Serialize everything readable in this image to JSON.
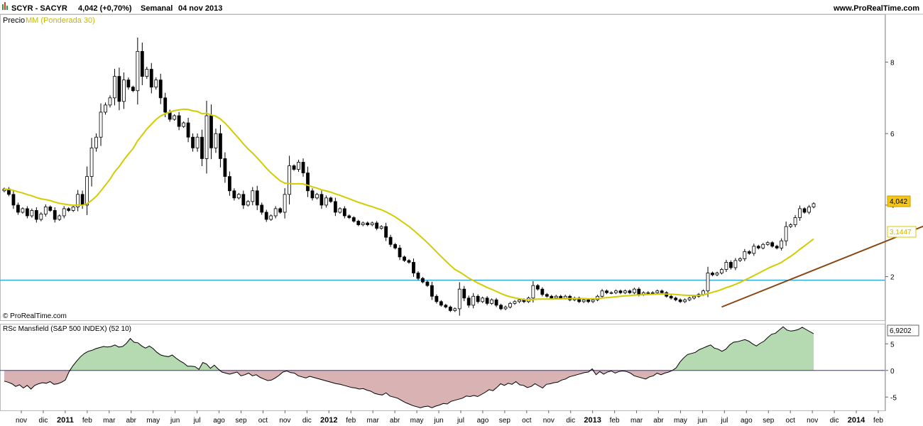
{
  "header": {
    "symbol": "SCYR - SACYR",
    "quote": "4,042 (+0,70%)",
    "period": "Semanal",
    "date": "04 nov 2013",
    "site": "www.ProRealTime.com",
    "legend_price": "Precio",
    "legend_ma": "MM (Ponderada 30)",
    "copyright": "© ProRealTime.com",
    "lower_title": "RSc Mansfield (S&P 500 INDEX) (52 10)"
  },
  "colors": {
    "up_candle": "#ffffff",
    "down_candle": "#000000",
    "ma_line": "#d4cb00",
    "support_line": "#33aadd",
    "trend_line": "#8b4513",
    "rsc_line": "#000000",
    "rsc_positive_fill": "#b5d9b0",
    "rsc_negative_fill": "#d9b3b3",
    "zero_line": "#3333aa",
    "price_tag_bg": "#f5c518"
  },
  "chart_data": [
    {
      "type": "candlestick",
      "title": "SCYR - SACYR",
      "y_ticks": [
        2,
        4,
        6,
        8
      ],
      "y_tick_labels": [
        "2",
        "4",
        "6",
        "8"
      ],
      "ylim": [
        0.8,
        9.3
      ],
      "x_labels": [
        {
          "label": "nov",
          "year": false
        },
        {
          "label": "dic",
          "year": false
        },
        {
          "label": "2011",
          "year": true
        },
        {
          "label": "feb",
          "year": false
        },
        {
          "label": "mar",
          "year": false
        },
        {
          "label": "abr",
          "year": false
        },
        {
          "label": "may",
          "year": false
        },
        {
          "label": "jun",
          "year": false
        },
        {
          "label": "jul",
          "year": false
        },
        {
          "label": "ago",
          "year": false
        },
        {
          "label": "sep",
          "year": false
        },
        {
          "label": "oct",
          "year": false
        },
        {
          "label": "nov",
          "year": false
        },
        {
          "label": "dic",
          "year": false
        },
        {
          "label": "2012",
          "year": true
        },
        {
          "label": "feb",
          "year": false
        },
        {
          "label": "mar",
          "year": false
        },
        {
          "label": "abr",
          "year": false
        },
        {
          "label": "may",
          "year": false
        },
        {
          "label": "jun",
          "year": false
        },
        {
          "label": "jul",
          "year": false
        },
        {
          "label": "ago",
          "year": false
        },
        {
          "label": "sep",
          "year": false
        },
        {
          "label": "oct",
          "year": false
        },
        {
          "label": "nov",
          "year": false
        },
        {
          "label": "dic",
          "year": false
        },
        {
          "label": "2013",
          "year": true
        },
        {
          "label": "feb",
          "year": false
        },
        {
          "label": "mar",
          "year": false
        },
        {
          "label": "abr",
          "year": false
        },
        {
          "label": "may",
          "year": false
        },
        {
          "label": "jun",
          "year": false
        },
        {
          "label": "jul",
          "year": false
        },
        {
          "label": "ago",
          "year": false
        },
        {
          "label": "sep",
          "year": false
        },
        {
          "label": "oct",
          "year": false
        },
        {
          "label": "nov",
          "year": false
        },
        {
          "label": "dic",
          "year": false
        },
        {
          "label": "2014",
          "year": true
        },
        {
          "label": "feb",
          "year": false
        }
      ],
      "close": [
        4.45,
        4.3,
        4.0,
        3.8,
        3.9,
        3.7,
        3.85,
        3.6,
        3.75,
        3.95,
        3.85,
        3.6,
        3.7,
        3.9,
        3.85,
        3.95,
        4.3,
        4.0,
        4.8,
        5.6,
        5.9,
        6.6,
        6.8,
        7.0,
        7.6,
        6.9,
        7.5,
        7.3,
        7.2,
        8.3,
        7.6,
        7.8,
        7.3,
        7.5,
        7.0,
        6.6,
        6.4,
        6.5,
        6.2,
        6.3,
        5.9,
        5.6,
        5.9,
        5.3,
        6.5,
        5.6,
        6.0,
        5.3,
        4.8,
        4.4,
        4.2,
        4.3,
        4.0,
        4.1,
        4.4,
        4.0,
        3.8,
        3.6,
        3.7,
        3.9,
        3.8,
        4.3,
        5.1,
        5.0,
        5.2,
        4.9,
        4.4,
        4.2,
        4.3,
        4.0,
        4.2,
        4.1,
        3.8,
        3.9,
        3.7,
        3.65,
        3.55,
        3.45,
        3.5,
        3.45,
        3.5,
        3.35,
        3.4,
        3.1,
        2.9,
        2.8,
        2.55,
        2.45,
        2.4,
        2.1,
        1.95,
        1.85,
        1.75,
        1.45,
        1.3,
        1.2,
        1.15,
        1.05,
        1.1,
        1.65,
        1.4,
        1.2,
        1.45,
        1.3,
        1.4,
        1.25,
        1.35,
        1.2,
        1.1,
        1.15,
        1.25,
        1.3,
        1.35,
        1.3,
        1.4,
        1.75,
        1.65,
        1.5,
        1.45,
        1.4,
        1.45,
        1.4,
        1.45,
        1.35,
        1.4,
        1.3,
        1.35,
        1.3,
        1.35,
        1.45,
        1.6,
        1.55,
        1.55,
        1.6,
        1.55,
        1.6,
        1.55,
        1.65,
        1.5,
        1.55,
        1.55,
        1.55,
        1.6,
        1.55,
        1.45,
        1.4,
        1.35,
        1.3,
        1.35,
        1.4,
        1.45,
        1.5,
        1.6,
        2.1,
        2.05,
        2.1,
        2.2,
        2.4,
        2.25,
        2.45,
        2.5,
        2.7,
        2.65,
        2.85,
        2.8,
        2.9,
        2.95,
        2.85,
        2.8,
        3.0,
        3.4,
        3.45,
        3.65,
        3.9,
        3.8,
        3.95,
        4.04
      ]
    },
    {
      "type": "line",
      "title": "MM (Ponderada 30)",
      "note": "30-period weighted moving average of the price"
    },
    {
      "type": "line",
      "title": "Support",
      "y_value": 1.9
    },
    {
      "type": "line",
      "title": "Trend",
      "from": {
        "index": 156,
        "value": 1.15
      },
      "to": {
        "index": 202,
        "value": 3.6
      }
    },
    {
      "type": "area",
      "title": "RSc Mansfield (S&P 500 INDEX) (52 10)",
      "y_ticks": [
        -5,
        0,
        5
      ],
      "y_tick_labels": [
        "-5",
        "0",
        "5"
      ],
      "ylim": [
        -7.5,
        8.5
      ],
      "last_value_label": "6,9202",
      "values": [
        -2.0,
        -2.2,
        -2.5,
        -3.0,
        -2.7,
        -3.3,
        -2.8,
        -3.5,
        -2.8,
        -2.5,
        -2.3,
        -2.4,
        -2.1,
        -2.6,
        -2.5,
        -2.2,
        -1.8,
        -0.2,
        0.9,
        1.8,
        2.6,
        3.2,
        3.6,
        3.8,
        4.1,
        4.3,
        4.5,
        4.4,
        4.5,
        4.8,
        4.4,
        4.5,
        5.1,
        6.0,
        5.3,
        5.2,
        4.6,
        4.2,
        4.6,
        4.1,
        3.4,
        2.9,
        2.7,
        2.6,
        2.9,
        2.3,
        1.8,
        1.4,
        0.8,
        0.8,
        0.7,
        0.2,
        1.5,
        1.2,
        0.4,
        1.0,
        0.3,
        -0.3,
        -0.5,
        -0.7,
        -0.5,
        -0.3,
        -1.0,
        -0.8,
        -0.5,
        -1.0,
        -0.8,
        -1.3,
        -1.6,
        -1.9,
        -1.8,
        -1.4,
        -0.9,
        -0.3,
        -0.1,
        -0.4,
        -0.5,
        -1.0,
        -1.2,
        -1.4,
        -1.1,
        -1.3,
        -1.5,
        -1.7,
        -1.9,
        -2.1,
        -2.3,
        -2.5,
        -2.6,
        -2.8,
        -3.0,
        -3.2,
        -3.3,
        -3.5,
        -3.4,
        -3.7,
        -3.9,
        -4.3,
        -4.5,
        -4.6,
        -4.2,
        -4.8,
        -5.0,
        -5.2,
        -5.6,
        -6.0,
        -6.3,
        -6.6,
        -6.8,
        -7.0,
        -6.8,
        -6.7,
        -7.0,
        -6.7,
        -6.5,
        -6.2,
        -6.3,
        -5.8,
        -5.6,
        -5.4,
        -5.2,
        -4.8,
        -4.9,
        -4.7,
        -4.9,
        -4.5,
        -4.1,
        -3.6,
        -3.8,
        -3.2,
        -2.5,
        -2.8,
        -2.4,
        -2.6,
        -2.1,
        -2.7,
        -2.8,
        -3.2,
        -3.0,
        -2.5,
        -2.9,
        -3.3,
        -2.6,
        -2.5,
        -2.3,
        -2.2,
        -1.8,
        -1.6,
        -1.2,
        -1.0,
        -0.8,
        -0.6,
        -0.4,
        -0.3,
        0.3,
        -0.8,
        -0.2,
        -0.7,
        -0.3,
        -0.1,
        -0.5,
        -0.2,
        -0.1,
        -0.2,
        -0.5,
        -1.0,
        -1.2,
        -1.4,
        -1.6,
        -1.2,
        -1.0,
        -0.5,
        -0.8,
        -0.5,
        -0.3,
        0.0,
        0.5,
        1.6,
        2.4,
        3.0,
        3.2,
        3.4,
        3.9,
        4.2,
        4.5,
        4.8,
        4.2,
        4.0,
        3.6,
        4.0,
        4.8,
        5.3,
        5.4,
        5.6,
        5.8,
        5.5,
        5.0,
        4.6,
        5.1,
        5.5,
        6.2,
        6.8,
        7.0,
        7.6,
        8.2,
        7.6,
        7.4,
        7.5,
        7.7,
        8.1,
        7.7,
        7.3,
        6.9
      ]
    }
  ],
  "labels": {
    "price_tag": "4,042",
    "ma_tag": "3,1447"
  }
}
